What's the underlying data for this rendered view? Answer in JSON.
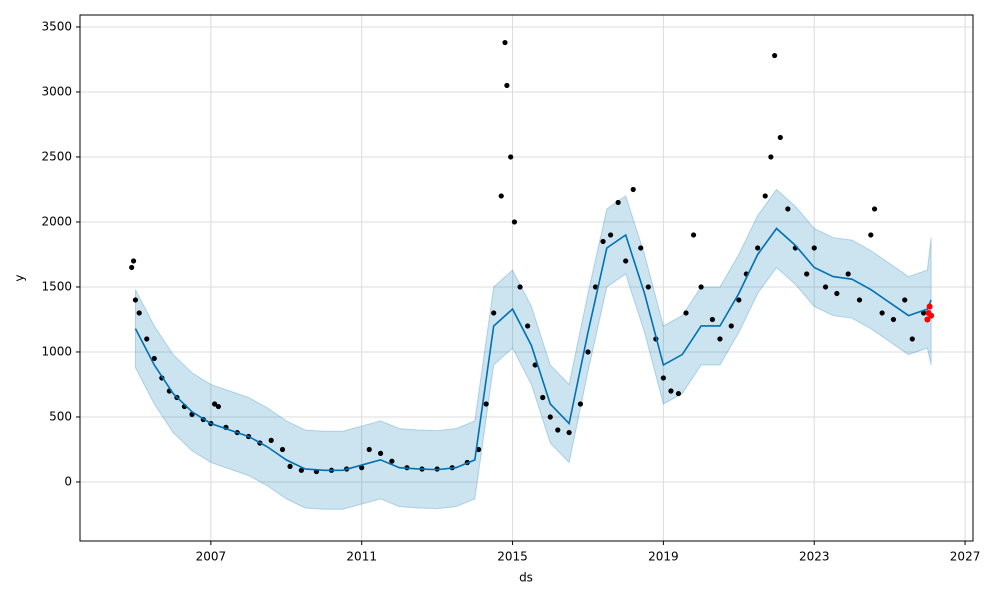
{
  "chart_data": {
    "type": "forecast",
    "xlabel": "ds",
    "ylabel": "y",
    "xlim": [
      2003.53,
      2027.21
    ],
    "ylim": [
      -454,
      3592
    ],
    "xticks": [
      2007,
      2011,
      2015,
      2019,
      2023,
      2027
    ],
    "yticks": [
      0,
      500,
      1000,
      1500,
      2000,
      2500,
      3000,
      3500
    ],
    "grid": true,
    "forecast": {
      "color": "#0072b2",
      "band_color": "#0072b2",
      "x": [
        2005.0,
        2005.5,
        2006.0,
        2006.5,
        2007.0,
        2007.5,
        2008.0,
        2008.5,
        2009.0,
        2009.5,
        2010.0,
        2010.5,
        2011.0,
        2011.5,
        2012.0,
        2012.5,
        2013.0,
        2013.5,
        2014.0,
        2014.5,
        2015.0,
        2015.5,
        2016.0,
        2016.5,
        2017.0,
        2017.5,
        2018.0,
        2018.5,
        2019.0,
        2019.5,
        2020.0,
        2020.5,
        2021.0,
        2021.5,
        2022.0,
        2022.5,
        2023.0,
        2023.5,
        2024.0,
        2024.5,
        2025.0,
        2025.5,
        2026.0,
        2026.1
      ],
      "values": [
        1180,
        900,
        680,
        540,
        450,
        400,
        350,
        270,
        170,
        100,
        90,
        90,
        130,
        170,
        110,
        100,
        95,
        110,
        170,
        1200,
        1330,
        1050,
        600,
        450,
        1150,
        1800,
        1900,
        1450,
        900,
        980,
        1200,
        1200,
        1450,
        1750,
        1950,
        1820,
        1650,
        1580,
        1560,
        1480,
        1380,
        1280,
        1330,
        1400
      ],
      "lower": [
        880,
        600,
        380,
        240,
        150,
        100,
        50,
        -30,
        -130,
        -200,
        -210,
        -210,
        -170,
        -130,
        -190,
        -200,
        -205,
        -190,
        -130,
        900,
        1030,
        750,
        300,
        150,
        850,
        1500,
        1600,
        1150,
        600,
        680,
        900,
        900,
        1150,
        1450,
        1650,
        1520,
        1350,
        1280,
        1260,
        1180,
        1080,
        980,
        1030,
        900
      ],
      "upper": [
        1480,
        1200,
        980,
        840,
        750,
        700,
        650,
        570,
        470,
        400,
        390,
        390,
        430,
        470,
        410,
        400,
        395,
        410,
        470,
        1500,
        1630,
        1350,
        900,
        750,
        1450,
        2100,
        2200,
        1750,
        1200,
        1280,
        1500,
        1500,
        1750,
        2050,
        2250,
        2120,
        1950,
        1880,
        1860,
        1780,
        1680,
        1580,
        1630,
        1880
      ]
    },
    "observed": {
      "color": "#000000",
      "x": [
        2004.9,
        2004.95,
        2005.0,
        2005.1,
        2005.3,
        2005.5,
        2005.7,
        2005.9,
        2006.1,
        2006.3,
        2006.5,
        2006.8,
        2007.0,
        2007.1,
        2007.2,
        2007.4,
        2007.7,
        2008.0,
        2008.3,
        2008.6,
        2008.9,
        2009.1,
        2009.4,
        2009.8,
        2010.2,
        2010.6,
        2011.0,
        2011.2,
        2011.5,
        2011.8,
        2012.2,
        2012.6,
        2013.0,
        2013.4,
        2013.8,
        2014.1,
        2014.3,
        2014.5,
        2014.7,
        2014.8,
        2014.85,
        2014.95,
        2015.05,
        2015.2,
        2015.4,
        2015.6,
        2015.8,
        2016.0,
        2016.2,
        2016.5,
        2016.8,
        2017.0,
        2017.2,
        2017.4,
        2017.6,
        2017.8,
        2018.0,
        2018.2,
        2018.4,
        2018.6,
        2018.8,
        2019.0,
        2019.2,
        2019.4,
        2019.6,
        2019.8,
        2020.0,
        2020.3,
        2020.5,
        2020.8,
        2021.0,
        2021.2,
        2021.5,
        2021.7,
        2021.85,
        2021.95,
        2022.1,
        2022.3,
        2022.5,
        2022.8,
        2023.0,
        2023.3,
        2023.6,
        2023.9,
        2024.2,
        2024.5,
        2024.6,
        2024.8,
        2025.1,
        2025.4,
        2025.6,
        2025.9
      ],
      "values": [
        1650,
        1700,
        1400,
        1300,
        1100,
        950,
        800,
        700,
        650,
        580,
        520,
        480,
        450,
        600,
        580,
        420,
        380,
        350,
        300,
        320,
        250,
        120,
        90,
        80,
        90,
        100,
        110,
        250,
        220,
        160,
        110,
        100,
        100,
        110,
        150,
        250,
        600,
        1300,
        2200,
        3380,
        3050,
        2500,
        2000,
        1500,
        1200,
        900,
        650,
        500,
        400,
        380,
        600,
        1000,
        1500,
        1850,
        1900,
        2150,
        1700,
        2250,
        1800,
        1500,
        1100,
        800,
        700,
        680,
        1300,
        1900,
        1500,
        1250,
        1100,
        1200,
        1400,
        1600,
        1800,
        2200,
        2500,
        3280,
        2650,
        2100,
        1800,
        1600,
        1800,
        1500,
        1450,
        1600,
        1400,
        1900,
        2100,
        1300,
        1250,
        1400,
        1100,
        1300
      ]
    },
    "highlight": {
      "color": "#ff0000",
      "x": [
        2026.0,
        2026.03,
        2026.06,
        2026.1
      ],
      "values": [
        1250,
        1300,
        1350,
        1280
      ]
    }
  }
}
